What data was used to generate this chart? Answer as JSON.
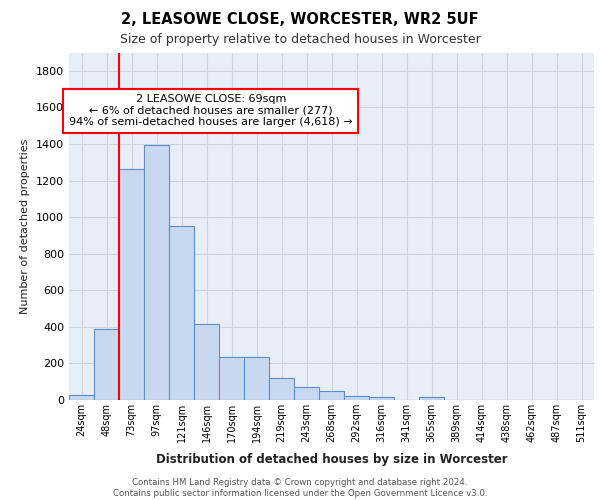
{
  "title1": "2, LEASOWE CLOSE, WORCESTER, WR2 5UF",
  "title2": "Size of property relative to detached houses in Worcester",
  "xlabel": "Distribution of detached houses by size in Worcester",
  "ylabel": "Number of detached properties",
  "bar_labels": [
    "24sqm",
    "48sqm",
    "73sqm",
    "97sqm",
    "121sqm",
    "146sqm",
    "170sqm",
    "194sqm",
    "219sqm",
    "243sqm",
    "268sqm",
    "292sqm",
    "316sqm",
    "341sqm",
    "365sqm",
    "389sqm",
    "414sqm",
    "438sqm",
    "462sqm",
    "487sqm",
    "511sqm"
  ],
  "bar_values": [
    30,
    390,
    1265,
    1395,
    950,
    415,
    235,
    235,
    120,
    70,
    50,
    20,
    15,
    0,
    15,
    0,
    0,
    0,
    0,
    0,
    0
  ],
  "bar_color": "#c8d8f0",
  "bar_edge_color": "#5b8fc9",
  "vline_color": "red",
  "annotation_text": "2 LEASOWE CLOSE: 69sqm\n← 6% of detached houses are smaller (277)\n94% of semi-detached houses are larger (4,618) →",
  "ylim": [
    0,
    1900
  ],
  "yticks": [
    0,
    200,
    400,
    600,
    800,
    1000,
    1200,
    1400,
    1600,
    1800
  ],
  "grid_color": "#ccd4e4",
  "footer": "Contains HM Land Registry data © Crown copyright and database right 2024.\nContains public sector information licensed under the Open Government Licence v3.0.",
  "bg_color": "#e8eef8",
  "vline_bar_idx": 2
}
